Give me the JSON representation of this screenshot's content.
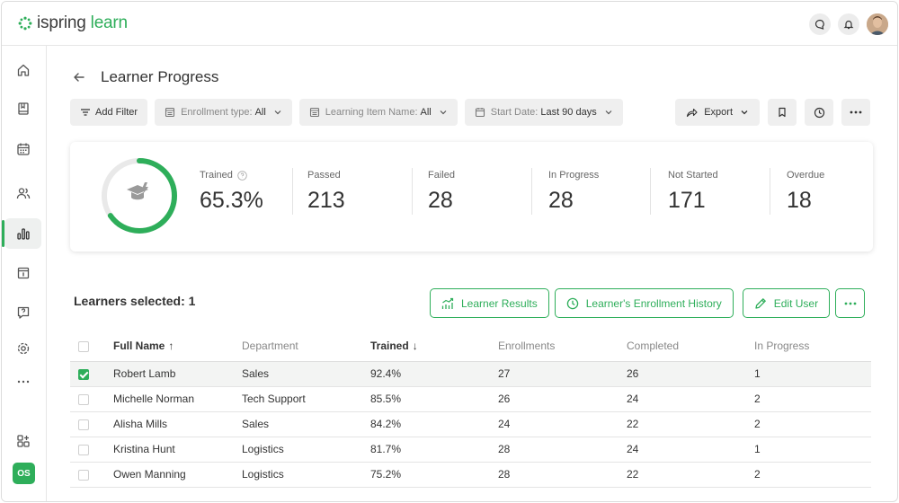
{
  "app": {
    "logo_primary": "ispring",
    "logo_secondary": "learn",
    "accent_color": "#2eae5a"
  },
  "header": {
    "icons": [
      "chat-icon",
      "bell-icon",
      "user-avatar"
    ]
  },
  "sidebar": {
    "items": [
      {
        "name": "home-icon",
        "active": false
      },
      {
        "name": "courses-icon",
        "active": false
      },
      {
        "name": "calendar-icon",
        "active": false
      },
      {
        "name": "users-icon",
        "active": false
      },
      {
        "name": "reports-icon",
        "active": true
      },
      {
        "name": "archive-icon",
        "active": false
      },
      {
        "name": "help-icon",
        "active": false
      },
      {
        "name": "settings-icon",
        "active": false
      },
      {
        "name": "more-icon",
        "active": false
      }
    ],
    "apps_icon": "apps-icon",
    "user_initials": "OS"
  },
  "page": {
    "title": "Learner Progress"
  },
  "filters": {
    "add_filter": "Add Filter",
    "enrollment_label": "Enrollment type:",
    "enrollment_value": "All",
    "item_label": "Learning Item Name:",
    "item_value": "All",
    "date_label": "Start Date:",
    "date_value": "Last 90 days",
    "export": "Export"
  },
  "stats": {
    "trained_fraction": 0.653,
    "items": [
      {
        "label": "Trained",
        "value": "65.3%"
      },
      {
        "label": "Passed",
        "value": "213"
      },
      {
        "label": "Failed",
        "value": "28"
      },
      {
        "label": "In Progress",
        "value": "28"
      },
      {
        "label": "Not Started",
        "value": "171"
      },
      {
        "label": "Overdue",
        "value": "18"
      }
    ]
  },
  "selection": {
    "text": "Learners selected: 1"
  },
  "actions": {
    "learner_results": "Learner Results",
    "enrollment_history": "Learner's Enrollment History",
    "edit_user": "Edit User"
  },
  "table": {
    "headers": {
      "name": "Full Name",
      "department": "Department",
      "trained": "Trained",
      "enrollments": "Enrollments",
      "completed": "Completed",
      "in_progress": "In Progress"
    },
    "rows": [
      {
        "name": "Robert Lamb",
        "department": "Sales",
        "trained": "92.4%",
        "enrollments": "27",
        "completed": "26",
        "in_progress": "1",
        "selected": true
      },
      {
        "name": "Michelle Norman",
        "department": "Tech Support",
        "trained": "85.5%",
        "enrollments": "26",
        "completed": "24",
        "in_progress": "2",
        "selected": false
      },
      {
        "name": "Alisha Mills",
        "department": "Sales",
        "trained": "84.2%",
        "enrollments": "24",
        "completed": "22",
        "in_progress": "2",
        "selected": false
      },
      {
        "name": "Kristina Hunt",
        "department": "Logistics",
        "trained": "81.7%",
        "enrollments": "28",
        "completed": "24",
        "in_progress": "1",
        "selected": false
      },
      {
        "name": "Owen Manning",
        "department": "Logistics",
        "trained": "75.2%",
        "enrollments": "28",
        "completed": "22",
        "in_progress": "2",
        "selected": false
      }
    ]
  }
}
